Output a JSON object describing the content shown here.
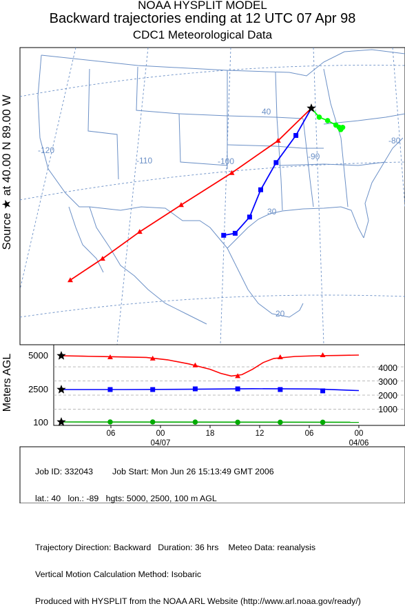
{
  "header": {
    "model": "NOAA HYSPLIT MODEL",
    "title": "Backward trajectories ending at 12 UTC 07 Apr 98",
    "subtitle": "CDC1 Meteorological Data"
  },
  "source_label": {
    "prefix": "Source",
    "at": "at",
    "lat": "40.00 N",
    "lon": "89.00 W"
  },
  "map": {
    "grid_labels": [
      "40",
      "-120",
      "-110",
      "-100",
      "-90",
      "-80",
      "30",
      "20"
    ]
  },
  "chart_data": [
    {
      "type": "line",
      "panel": "map",
      "title": "Backward trajectories ending at 12 UTC 07 Apr 98",
      "axes": "longitude / latitude",
      "series": [
        {
          "name": "5000 m AGL",
          "color": "#ff0000",
          "marker": "triangle",
          "points": [
            [
              -89.0,
              40.0
            ],
            [
              -92.5,
              37.0
            ],
            [
              -97.5,
              34.0
            ],
            [
              -103.0,
              31.0
            ],
            [
              -107.5,
              28.5
            ],
            [
              -111.5,
              26.0
            ],
            [
              -115.0,
              24.0
            ]
          ]
        },
        {
          "name": "2500 m AGL",
          "color": "#0000ff",
          "marker": "square",
          "points": [
            [
              -89.0,
              40.0
            ],
            [
              -90.5,
              37.5
            ],
            [
              -92.5,
              35.0
            ],
            [
              -94.0,
              32.5
            ],
            [
              -95.0,
              30.0
            ],
            [
              -96.5,
              28.5
            ],
            [
              -97.8,
              28.3
            ]
          ]
        },
        {
          "name": "100 m AGL",
          "color": "#00ff00",
          "marker": "circle",
          "points": [
            [
              -89.0,
              40.0
            ],
            [
              -88.0,
              39.2
            ],
            [
              -87.0,
              38.9
            ],
            [
              -86.0,
              38.5
            ],
            [
              -85.6,
              38.3
            ],
            [
              -85.2,
              38.3
            ],
            [
              -85.4,
              38.1
            ]
          ]
        }
      ]
    },
    {
      "type": "line",
      "panel": "height",
      "ylabel": "Meters AGL",
      "left_ticks": [
        "5000",
        "2500",
        "100"
      ],
      "right_ticks": [
        "4000",
        "3000",
        "2000",
        "1000"
      ],
      "x_tick_labels": [
        "06",
        "00",
        "18",
        "12",
        "06",
        "00"
      ],
      "x_date_labels": [
        "04/07",
        "04/06"
      ],
      "series": [
        {
          "name": "5000 m AGL",
          "color": "#ff0000",
          "marker": "triangle",
          "values": [
            5000,
            4900,
            4800,
            4300,
            3500,
            4900,
            5050
          ],
          "trace": [
            [
              0,
              5000
            ],
            [
              2,
              4970
            ],
            [
              4,
              4940
            ],
            [
              6,
              4910
            ],
            [
              8,
              4880
            ],
            [
              10,
              4700
            ],
            [
              12,
              4400
            ],
            [
              14,
              4000
            ],
            [
              15,
              3700
            ],
            [
              16,
              3500
            ],
            [
              17,
              3600
            ],
            [
              18,
              4000
            ],
            [
              19,
              4500
            ],
            [
              20,
              4800
            ],
            [
              22,
              4950
            ],
            [
              24,
              5000
            ],
            [
              26,
              5020
            ],
            [
              28,
              5050
            ]
          ]
        },
        {
          "name": "2500 m AGL",
          "color": "#0000ff",
          "marker": "square",
          "values": [
            2500,
            2500,
            2500,
            2550,
            2550,
            2500,
            2400
          ],
          "trace": [
            [
              0,
              2500
            ],
            [
              6,
              2500
            ],
            [
              12,
              2520
            ],
            [
              18,
              2560
            ],
            [
              24,
              2540
            ],
            [
              28,
              2420
            ]
          ]
        },
        {
          "name": "100 m AGL",
          "color": "#00aa00",
          "marker": "circle",
          "values": [
            100,
            100,
            100,
            90,
            80,
            80,
            80
          ],
          "trace": [
            [
              0,
              100
            ],
            [
              28,
              80
            ]
          ]
        }
      ]
    }
  ],
  "footer": {
    "job_id": "Job ID: 332043",
    "job_start": "Job Start: Mon Jun 26 15:13:49 GMT 2006",
    "params": "lat.: 40   lon.: -89   hgts: 5000, 2500, 100 m AGL",
    "direction": "Trajectory Direction: Backward",
    "duration": "Duration: 36 hrs",
    "meteo": "Meteo Data: reanalysis",
    "vertical": "Vertical Motion Calculation Method: Isobaric",
    "produced": "Produced with HYSPLIT from the NOAA ARL Website (http://www.arl.noaa.gov/ready/)"
  }
}
